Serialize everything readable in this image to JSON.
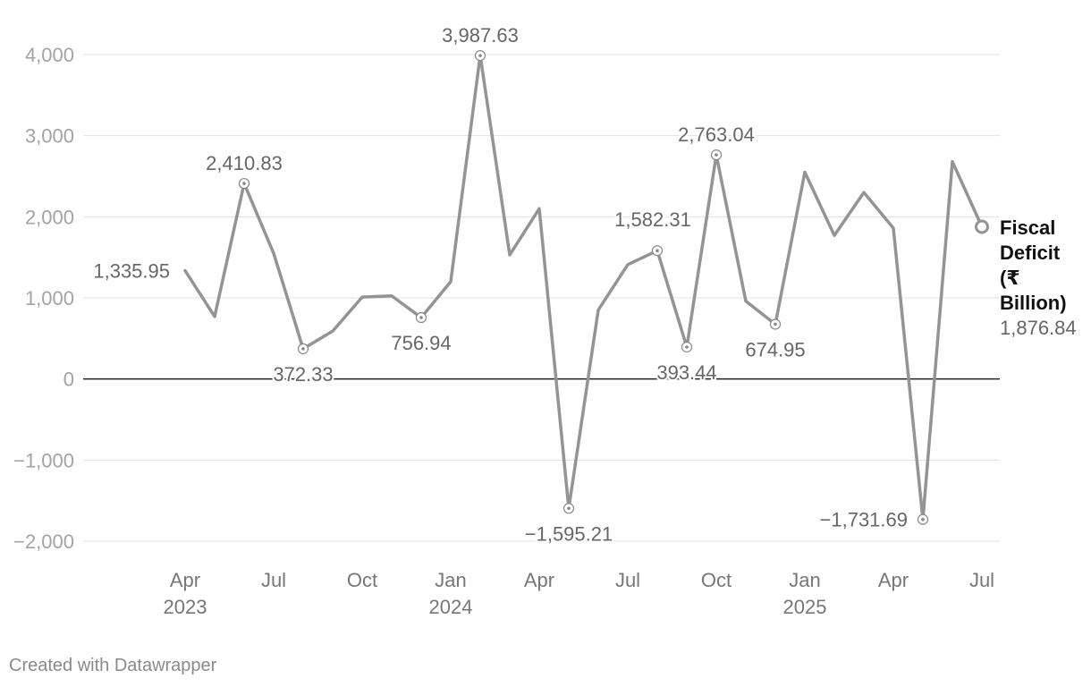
{
  "chart_data": {
    "type": "line",
    "title": "",
    "xlabel": "",
    "ylabel": "",
    "ylim": [
      -2000,
      4000
    ],
    "yticks": [
      -2000,
      -1000,
      0,
      1000,
      2000,
      3000,
      4000
    ],
    "ytick_labels": [
      "−2,000",
      "−1,000",
      "0",
      "1,000",
      "2,000",
      "3,000",
      "4,000"
    ],
    "grid": true,
    "xticks": [
      {
        "date": "2023-04",
        "line1": "Apr",
        "line2": "2023"
      },
      {
        "date": "2023-07",
        "line1": "Jul",
        "line2": ""
      },
      {
        "date": "2023-10",
        "line1": "Oct",
        "line2": ""
      },
      {
        "date": "2024-01",
        "line1": "Jan",
        "line2": "2024"
      },
      {
        "date": "2024-04",
        "line1": "Apr",
        "line2": ""
      },
      {
        "date": "2024-07",
        "line1": "Jul",
        "line2": ""
      },
      {
        "date": "2024-10",
        "line1": "Oct",
        "line2": ""
      },
      {
        "date": "2025-01",
        "line1": "Jan",
        "line2": "2025"
      },
      {
        "date": "2025-04",
        "line1": "Apr",
        "line2": ""
      },
      {
        "date": "2025-07",
        "line1": "Jul",
        "line2": ""
      }
    ],
    "series": [
      {
        "name": "Fiscal Deficit (₹ Billion)",
        "color": "#949494",
        "x": [
          "2023-04",
          "2023-05",
          "2023-06",
          "2023-07",
          "2023-08",
          "2023-09",
          "2023-10",
          "2023-11",
          "2023-12",
          "2024-01",
          "2024-02",
          "2024-03",
          "2024-04",
          "2024-05",
          "2024-06",
          "2024-07",
          "2024-08",
          "2024-09",
          "2024-10",
          "2024-11",
          "2024-12",
          "2025-01",
          "2025-02",
          "2025-03",
          "2025-04",
          "2025-05",
          "2025-06",
          "2025-07"
        ],
        "values": [
          1335.95,
          770,
          2410.83,
          1550,
          372.33,
          590,
          1010,
          1025,
          756.94,
          1200,
          3987.63,
          1530,
          2100,
          -1595.21,
          850,
          1410,
          1582.31,
          393.44,
          2763.04,
          960,
          674.95,
          2550,
          1770,
          2300,
          1860,
          -1731.69,
          2680,
          1876.84
        ]
      }
    ],
    "annotations": [
      {
        "index": 0,
        "label": "1,335.95",
        "pos": "left",
        "marker": false
      },
      {
        "index": 2,
        "label": "2,410.83",
        "pos": "above",
        "marker": true
      },
      {
        "index": 4,
        "label": "372.33",
        "pos": "below",
        "marker": true
      },
      {
        "index": 8,
        "label": "756.94",
        "pos": "below",
        "marker": true
      },
      {
        "index": 10,
        "label": "3,987.63",
        "pos": "above",
        "marker": true
      },
      {
        "index": 13,
        "label": "−1,595.21",
        "pos": "below",
        "marker": true
      },
      {
        "index": 16,
        "label": "1,582.31",
        "pos": "above-left",
        "marker": true
      },
      {
        "index": 17,
        "label": "393.44",
        "pos": "below",
        "marker": true
      },
      {
        "index": 18,
        "label": "2,763.04",
        "pos": "above",
        "marker": true
      },
      {
        "index": 20,
        "label": "674.95",
        "pos": "below",
        "marker": true
      },
      {
        "index": 25,
        "label": "−1,731.69",
        "pos": "left",
        "marker": true
      }
    ],
    "end_label": {
      "name_lines": [
        "Fiscal",
        "Deficit",
        "(₹",
        "Billion)"
      ],
      "value": "1,876.84"
    }
  },
  "footer": {
    "credit": "Created with Datawrapper"
  }
}
